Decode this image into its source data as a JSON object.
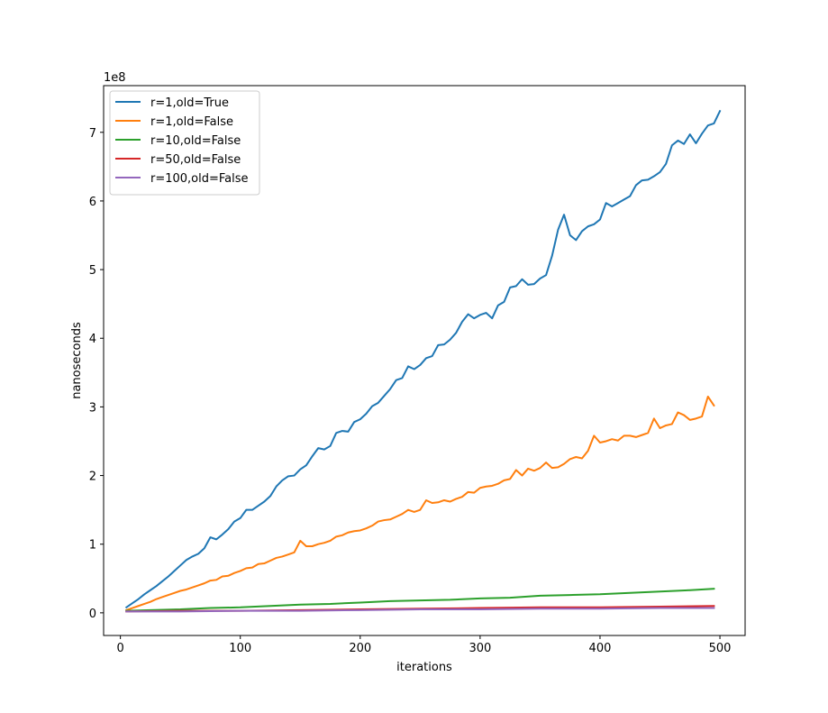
{
  "chart_data": {
    "type": "line",
    "xlabel": "iterations",
    "ylabel": "nanoseconds",
    "y_multiplier_label": "1e8",
    "xlim": [
      -14,
      521
    ],
    "ylim": [
      -0.33,
      7.68
    ],
    "xticks": [
      0,
      100,
      200,
      300,
      400,
      500
    ],
    "yticks": [
      0,
      1,
      2,
      3,
      4,
      5,
      6,
      7
    ],
    "legend_position": "top-left",
    "grid": false,
    "series": [
      {
        "name": "r=1,old=True",
        "color": "#1f77b4",
        "points": [
          [
            5,
            0.08
          ],
          [
            10,
            0.14
          ],
          [
            15,
            0.2
          ],
          [
            20,
            0.27
          ],
          [
            25,
            0.33
          ],
          [
            30,
            0.39
          ],
          [
            35,
            0.46
          ],
          [
            40,
            0.53
          ],
          [
            45,
            0.61
          ],
          [
            50,
            0.69
          ],
          [
            55,
            0.77
          ],
          [
            60,
            0.82
          ],
          [
            65,
            0.86
          ],
          [
            70,
            0.94
          ],
          [
            75,
            1.1
          ],
          [
            80,
            1.07
          ],
          [
            85,
            1.14
          ],
          [
            90,
            1.22
          ],
          [
            95,
            1.33
          ],
          [
            100,
            1.38
          ],
          [
            105,
            1.5
          ],
          [
            110,
            1.5
          ],
          [
            115,
            1.56
          ],
          [
            120,
            1.62
          ],
          [
            125,
            1.7
          ],
          [
            130,
            1.84
          ],
          [
            135,
            1.93
          ],
          [
            140,
            1.99
          ],
          [
            145,
            2.0
          ],
          [
            150,
            2.09
          ],
          [
            155,
            2.15
          ],
          [
            160,
            2.28
          ],
          [
            165,
            2.4
          ],
          [
            170,
            2.38
          ],
          [
            175,
            2.43
          ],
          [
            180,
            2.62
          ],
          [
            185,
            2.65
          ],
          [
            190,
            2.64
          ],
          [
            195,
            2.78
          ],
          [
            200,
            2.82
          ],
          [
            205,
            2.9
          ],
          [
            210,
            3.01
          ],
          [
            215,
            3.06
          ],
          [
            220,
            3.16
          ],
          [
            225,
            3.26
          ],
          [
            230,
            3.39
          ],
          [
            235,
            3.42
          ],
          [
            240,
            3.59
          ],
          [
            245,
            3.55
          ],
          [
            250,
            3.61
          ],
          [
            255,
            3.71
          ],
          [
            260,
            3.74
          ],
          [
            265,
            3.9
          ],
          [
            270,
            3.91
          ],
          [
            275,
            3.98
          ],
          [
            280,
            4.08
          ],
          [
            285,
            4.24
          ],
          [
            290,
            4.35
          ],
          [
            295,
            4.29
          ],
          [
            300,
            4.34
          ],
          [
            305,
            4.37
          ],
          [
            310,
            4.29
          ],
          [
            315,
            4.48
          ],
          [
            320,
            4.53
          ],
          [
            325,
            4.74
          ],
          [
            330,
            4.76
          ],
          [
            335,
            4.86
          ],
          [
            340,
            4.78
          ],
          [
            345,
            4.79
          ],
          [
            350,
            4.87
          ],
          [
            355,
            4.92
          ],
          [
            360,
            5.2
          ],
          [
            365,
            5.58
          ],
          [
            370,
            5.8
          ],
          [
            375,
            5.5
          ],
          [
            380,
            5.43
          ],
          [
            385,
            5.56
          ],
          [
            390,
            5.63
          ],
          [
            395,
            5.66
          ],
          [
            400,
            5.73
          ],
          [
            405,
            5.97
          ],
          [
            410,
            5.92
          ],
          [
            415,
            5.97
          ],
          [
            420,
            6.02
          ],
          [
            425,
            6.07
          ],
          [
            430,
            6.23
          ],
          [
            435,
            6.3
          ],
          [
            440,
            6.31
          ],
          [
            445,
            6.36
          ],
          [
            450,
            6.42
          ],
          [
            455,
            6.54
          ],
          [
            460,
            6.81
          ],
          [
            465,
            6.88
          ],
          [
            470,
            6.83
          ],
          [
            475,
            6.97
          ],
          [
            480,
            6.84
          ],
          [
            485,
            6.98
          ],
          [
            490,
            7.1
          ],
          [
            495,
            7.13
          ],
          [
            500,
            7.31
          ]
        ]
      },
      {
        "name": "r=1,old=False",
        "color": "#ff7f0e",
        "points": [
          [
            5,
            0.04
          ],
          [
            10,
            0.07
          ],
          [
            15,
            0.1
          ],
          [
            20,
            0.13
          ],
          [
            25,
            0.16
          ],
          [
            30,
            0.2
          ],
          [
            35,
            0.23
          ],
          [
            40,
            0.26
          ],
          [
            45,
            0.29
          ],
          [
            50,
            0.32
          ],
          [
            55,
            0.34
          ],
          [
            60,
            0.37
          ],
          [
            65,
            0.4
          ],
          [
            70,
            0.43
          ],
          [
            75,
            0.47
          ],
          [
            80,
            0.48
          ],
          [
            85,
            0.53
          ],
          [
            90,
            0.54
          ],
          [
            95,
            0.58
          ],
          [
            100,
            0.61
          ],
          [
            105,
            0.65
          ],
          [
            110,
            0.66
          ],
          [
            115,
            0.71
          ],
          [
            120,
            0.72
          ],
          [
            125,
            0.76
          ],
          [
            130,
            0.8
          ],
          [
            135,
            0.82
          ],
          [
            140,
            0.85
          ],
          [
            145,
            0.88
          ],
          [
            150,
            1.05
          ],
          [
            155,
            0.97
          ],
          [
            160,
            0.97
          ],
          [
            165,
            1.0
          ],
          [
            170,
            1.02
          ],
          [
            175,
            1.05
          ],
          [
            180,
            1.11
          ],
          [
            185,
            1.13
          ],
          [
            190,
            1.17
          ],
          [
            195,
            1.19
          ],
          [
            200,
            1.2
          ],
          [
            205,
            1.23
          ],
          [
            210,
            1.27
          ],
          [
            215,
            1.33
          ],
          [
            220,
            1.35
          ],
          [
            225,
            1.36
          ],
          [
            230,
            1.4
          ],
          [
            235,
            1.44
          ],
          [
            240,
            1.5
          ],
          [
            245,
            1.47
          ],
          [
            250,
            1.5
          ],
          [
            255,
            1.64
          ],
          [
            260,
            1.6
          ],
          [
            265,
            1.61
          ],
          [
            270,
            1.64
          ],
          [
            275,
            1.62
          ],
          [
            280,
            1.66
          ],
          [
            285,
            1.69
          ],
          [
            290,
            1.76
          ],
          [
            295,
            1.75
          ],
          [
            300,
            1.82
          ],
          [
            305,
            1.84
          ],
          [
            310,
            1.85
          ],
          [
            315,
            1.88
          ],
          [
            320,
            1.93
          ],
          [
            325,
            1.95
          ],
          [
            330,
            2.08
          ],
          [
            335,
            2.0
          ],
          [
            340,
            2.1
          ],
          [
            345,
            2.07
          ],
          [
            350,
            2.11
          ],
          [
            355,
            2.19
          ],
          [
            360,
            2.11
          ],
          [
            365,
            2.12
          ],
          [
            370,
            2.17
          ],
          [
            375,
            2.24
          ],
          [
            380,
            2.27
          ],
          [
            385,
            2.25
          ],
          [
            390,
            2.36
          ],
          [
            395,
            2.58
          ],
          [
            400,
            2.48
          ],
          [
            405,
            2.5
          ],
          [
            410,
            2.53
          ],
          [
            415,
            2.51
          ],
          [
            420,
            2.58
          ],
          [
            425,
            2.58
          ],
          [
            430,
            2.56
          ],
          [
            435,
            2.59
          ],
          [
            440,
            2.62
          ],
          [
            445,
            2.83
          ],
          [
            450,
            2.69
          ],
          [
            455,
            2.73
          ],
          [
            460,
            2.75
          ],
          [
            465,
            2.92
          ],
          [
            470,
            2.88
          ],
          [
            475,
            2.81
          ],
          [
            480,
            2.83
          ],
          [
            485,
            2.86
          ],
          [
            490,
            3.15
          ],
          [
            495,
            3.02
          ]
        ]
      },
      {
        "name": "r=10,old=False",
        "color": "#2ca02c",
        "points": [
          [
            5,
            0.03
          ],
          [
            25,
            0.04
          ],
          [
            50,
            0.05
          ],
          [
            75,
            0.07
          ],
          [
            100,
            0.08
          ],
          [
            125,
            0.1
          ],
          [
            150,
            0.12
          ],
          [
            175,
            0.13
          ],
          [
            200,
            0.15
          ],
          [
            225,
            0.17
          ],
          [
            250,
            0.18
          ],
          [
            275,
            0.19
          ],
          [
            300,
            0.21
          ],
          [
            325,
            0.22
          ],
          [
            350,
            0.25
          ],
          [
            375,
            0.26
          ],
          [
            400,
            0.27
          ],
          [
            425,
            0.29
          ],
          [
            450,
            0.31
          ],
          [
            475,
            0.33
          ],
          [
            495,
            0.35
          ]
        ]
      },
      {
        "name": "r=50,old=False",
        "color": "#d62728",
        "points": [
          [
            5,
            0.02
          ],
          [
            50,
            0.03
          ],
          [
            100,
            0.03
          ],
          [
            150,
            0.04
          ],
          [
            200,
            0.05
          ],
          [
            250,
            0.06
          ],
          [
            300,
            0.07
          ],
          [
            350,
            0.08
          ],
          [
            400,
            0.08
          ],
          [
            450,
            0.09
          ],
          [
            495,
            0.1
          ]
        ]
      },
      {
        "name": "r=100,old=False",
        "color": "#9467bd",
        "points": [
          [
            5,
            0.02
          ],
          [
            50,
            0.02
          ],
          [
            100,
            0.03
          ],
          [
            150,
            0.03
          ],
          [
            200,
            0.04
          ],
          [
            250,
            0.05
          ],
          [
            300,
            0.05
          ],
          [
            350,
            0.06
          ],
          [
            400,
            0.06
          ],
          [
            450,
            0.07
          ],
          [
            495,
            0.07
          ]
        ]
      }
    ]
  }
}
